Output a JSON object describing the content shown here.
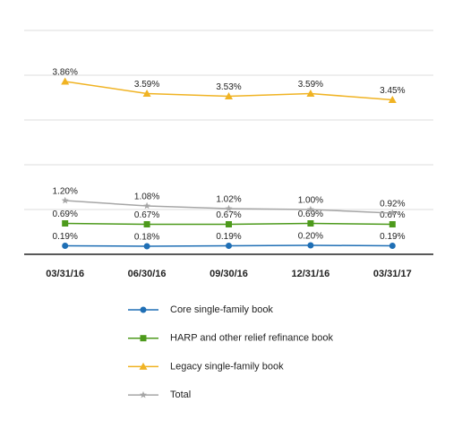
{
  "chart_data": {
    "type": "line",
    "categories": [
      "03/31/16",
      "06/30/16",
      "09/30/16",
      "12/31/16",
      "03/31/17"
    ],
    "ylim": [
      0,
      5
    ],
    "yticks": [
      0,
      1,
      2,
      3,
      4,
      5
    ],
    "grid": true,
    "legend": "bottom",
    "series": [
      {
        "name": "Core single-family book",
        "color": "#1f6fb5",
        "marker": "circle",
        "values": [
          0.19,
          0.18,
          0.19,
          0.2,
          0.19
        ],
        "value_labels": [
          "0.19%",
          "0.18%",
          "0.19%",
          "0.20%",
          "0.19%"
        ]
      },
      {
        "name": "HARP and other relief refinance book",
        "color": "#4d9a1c",
        "marker": "square",
        "values": [
          0.69,
          0.67,
          0.67,
          0.69,
          0.67
        ],
        "value_labels": [
          "0.69%",
          "0.67%",
          "0.67%",
          "0.69%",
          "0.67%"
        ]
      },
      {
        "name": "Legacy single-family book",
        "color": "#f0b323",
        "marker": "triangle",
        "values": [
          3.86,
          3.59,
          3.53,
          3.59,
          3.45
        ],
        "value_labels": [
          "3.86%",
          "3.59%",
          "3.53%",
          "3.59%",
          "3.45%"
        ]
      },
      {
        "name": "Total",
        "color": "#a6a6a6",
        "marker": "star",
        "values": [
          1.2,
          1.08,
          1.02,
          1.0,
          0.92
        ],
        "value_labels": [
          "1.20%",
          "1.08%",
          "1.02%",
          "1.00%",
          "0.92%"
        ]
      }
    ]
  }
}
